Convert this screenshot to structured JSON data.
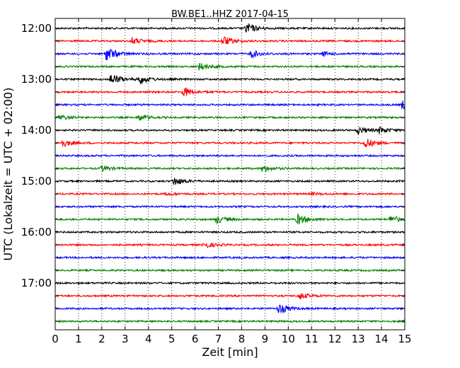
{
  "chart_data": {
    "type": "line",
    "title": "BW.BE1..HHZ 2017-04-15",
    "xlabel": "Zeit  [min]",
    "ylabel": "UTC (Lokalzeit = UTC + 02:00)",
    "xlim": [
      0,
      15
    ],
    "x_ticks": [
      "0",
      "1",
      "2",
      "3",
      "4",
      "5",
      "6",
      "7",
      "8",
      "9",
      "10",
      "11",
      "12",
      "13",
      "14",
      "15"
    ],
    "y_tick_labels": [
      "12:00",
      "13:00",
      "14:00",
      "15:00",
      "16:00",
      "17:00"
    ],
    "grid": "vertical dotted",
    "trace_colors": [
      "#000000",
      "#ff0000",
      "#0000ff",
      "#008000"
    ],
    "traces": [
      {
        "start": "12:00",
        "events": [
          [
            8.2,
            0.9
          ]
        ]
      },
      {
        "start": "12:15",
        "events": [
          [
            3.3,
            0.5
          ],
          [
            7.2,
            0.8
          ]
        ]
      },
      {
        "start": "12:30",
        "events": [
          [
            2.2,
            1.2
          ],
          [
            8.4,
            0.6
          ],
          [
            11.5,
            0.3
          ]
        ]
      },
      {
        "start": "12:45",
        "events": [
          [
            6.2,
            0.6
          ]
        ]
      },
      {
        "start": "13:00",
        "events": [
          [
            2.4,
            0.9
          ],
          [
            3.6,
            0.8
          ]
        ]
      },
      {
        "start": "13:15",
        "events": [
          [
            5.5,
            0.8
          ]
        ]
      },
      {
        "start": "13:30",
        "events": [
          [
            14.9,
            0.6
          ]
        ]
      },
      {
        "start": "13:45",
        "events": [
          [
            0.2,
            0.4
          ],
          [
            3.6,
            0.5
          ]
        ]
      },
      {
        "start": "14:00",
        "events": [
          [
            13.0,
            0.6
          ],
          [
            13.9,
            0.5
          ]
        ]
      },
      {
        "start": "14:15",
        "events": [
          [
            0.3,
            0.6
          ],
          [
            13.3,
            0.8
          ]
        ]
      },
      {
        "start": "14:30",
        "events": []
      },
      {
        "start": "14:45",
        "events": [
          [
            2.0,
            0.4
          ],
          [
            8.9,
            0.5
          ]
        ]
      },
      {
        "start": "15:00",
        "events": [
          [
            5.1,
            0.7
          ]
        ]
      },
      {
        "start": "15:15",
        "events": [
          [
            4.8,
            0.2
          ],
          [
            11.0,
            0.2
          ]
        ]
      },
      {
        "start": "15:30",
        "events": []
      },
      {
        "start": "15:45",
        "events": [
          [
            6.9,
            0.6
          ],
          [
            10.4,
            0.8
          ],
          [
            14.4,
            0.6
          ]
        ]
      },
      {
        "start": "16:00",
        "events": []
      },
      {
        "start": "16:15",
        "events": [
          [
            6.4,
            0.5
          ]
        ]
      },
      {
        "start": "16:30",
        "events": []
      },
      {
        "start": "16:45",
        "events": []
      },
      {
        "start": "17:00",
        "events": []
      },
      {
        "start": "17:15",
        "events": [
          [
            10.5,
            0.5
          ]
        ]
      },
      {
        "start": "17:30",
        "events": [
          [
            9.6,
            0.8
          ]
        ]
      },
      {
        "start": "17:45",
        "events": []
      }
    ]
  }
}
